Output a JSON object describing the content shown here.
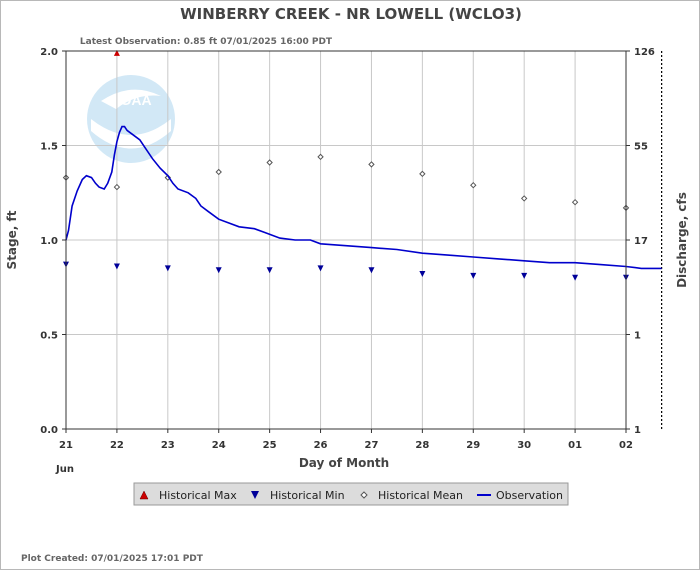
{
  "chart_data": {
    "type": "line",
    "title": "WINBERRY CREEK - NR LOWELL  (WCLO3)",
    "subtitle": "Latest Observation: 0.85 ft 07/01/2025 16:00 PDT",
    "xlabel": "Day of Month",
    "ylabel": "Stage, ft",
    "y2label": "Discharge, cfs",
    "footer": "Plot Created: 07/01/2025 17:01 PDT",
    "x_tick_labels": [
      "21",
      "22",
      "23",
      "24",
      "25",
      "26",
      "27",
      "28",
      "29",
      "30",
      "01",
      "02"
    ],
    "x_sublabel": "Jun",
    "ylim": [
      0,
      2.0
    ],
    "y_ticks": [
      "0.0",
      "0.5",
      "1.0",
      "1.5",
      "2.0"
    ],
    "y2_ticks": [
      "1",
      "1",
      "17",
      "55",
      "126"
    ],
    "grid": true,
    "legend_position": "bottom",
    "current_time_day": 11.7,
    "series": [
      {
        "name": "Historical Max",
        "marker": "triangle-up",
        "color": "#cc0000",
        "points": [
          [
            1,
            1.99
          ]
        ]
      },
      {
        "name": "Historical Min",
        "marker": "triangle-down",
        "color": "#000099",
        "points": [
          [
            0,
            0.87
          ],
          [
            1,
            0.86
          ],
          [
            2,
            0.85
          ],
          [
            3,
            0.84
          ],
          [
            4,
            0.84
          ],
          [
            5,
            0.85
          ],
          [
            6,
            0.84
          ],
          [
            7,
            0.82
          ],
          [
            8,
            0.81
          ],
          [
            9,
            0.81
          ],
          [
            10,
            0.8
          ],
          [
            11,
            0.8
          ]
        ]
      },
      {
        "name": "Historical Mean",
        "marker": "diamond",
        "color": "#555555",
        "points": [
          [
            0,
            1.33
          ],
          [
            1,
            1.28
          ],
          [
            2,
            1.33
          ],
          [
            3,
            1.36
          ],
          [
            4,
            1.41
          ],
          [
            5,
            1.44
          ],
          [
            6,
            1.4
          ],
          [
            7,
            1.35
          ],
          [
            8,
            1.29
          ],
          [
            9,
            1.22
          ],
          [
            10,
            1.2
          ],
          [
            11,
            1.17
          ]
        ]
      },
      {
        "name": "Observation",
        "marker": "line",
        "color": "#0000cc",
        "points": [
          [
            0,
            1.0
          ],
          [
            0.05,
            1.05
          ],
          [
            0.12,
            1.18
          ],
          [
            0.22,
            1.26
          ],
          [
            0.32,
            1.32
          ],
          [
            0.4,
            1.34
          ],
          [
            0.5,
            1.33
          ],
          [
            0.58,
            1.3
          ],
          [
            0.65,
            1.28
          ],
          [
            0.75,
            1.27
          ],
          [
            0.82,
            1.3
          ],
          [
            0.9,
            1.36
          ],
          [
            0.95,
            1.45
          ],
          [
            1.0,
            1.52
          ],
          [
            1.05,
            1.57
          ],
          [
            1.1,
            1.6
          ],
          [
            1.15,
            1.6
          ],
          [
            1.2,
            1.58
          ],
          [
            1.3,
            1.56
          ],
          [
            1.45,
            1.53
          ],
          [
            1.55,
            1.49
          ],
          [
            1.7,
            1.43
          ],
          [
            1.85,
            1.38
          ],
          [
            2.0,
            1.34
          ],
          [
            2.1,
            1.3
          ],
          [
            2.2,
            1.27
          ],
          [
            2.4,
            1.25
          ],
          [
            2.55,
            1.22
          ],
          [
            2.65,
            1.18
          ],
          [
            2.8,
            1.15
          ],
          [
            3.0,
            1.11
          ],
          [
            3.2,
            1.09
          ],
          [
            3.4,
            1.07
          ],
          [
            3.7,
            1.06
          ],
          [
            3.9,
            1.04
          ],
          [
            4.2,
            1.01
          ],
          [
            4.5,
            1.0
          ],
          [
            4.8,
            1.0
          ],
          [
            5.0,
            0.98
          ],
          [
            5.5,
            0.97
          ],
          [
            6.0,
            0.96
          ],
          [
            6.5,
            0.95
          ],
          [
            7.0,
            0.93
          ],
          [
            7.5,
            0.92
          ],
          [
            8.0,
            0.91
          ],
          [
            8.5,
            0.9
          ],
          [
            9.0,
            0.89
          ],
          [
            9.5,
            0.88
          ],
          [
            10.0,
            0.88
          ],
          [
            10.5,
            0.87
          ],
          [
            11.0,
            0.86
          ],
          [
            11.3,
            0.85
          ],
          [
            11.7,
            0.85
          ]
        ]
      }
    ]
  }
}
